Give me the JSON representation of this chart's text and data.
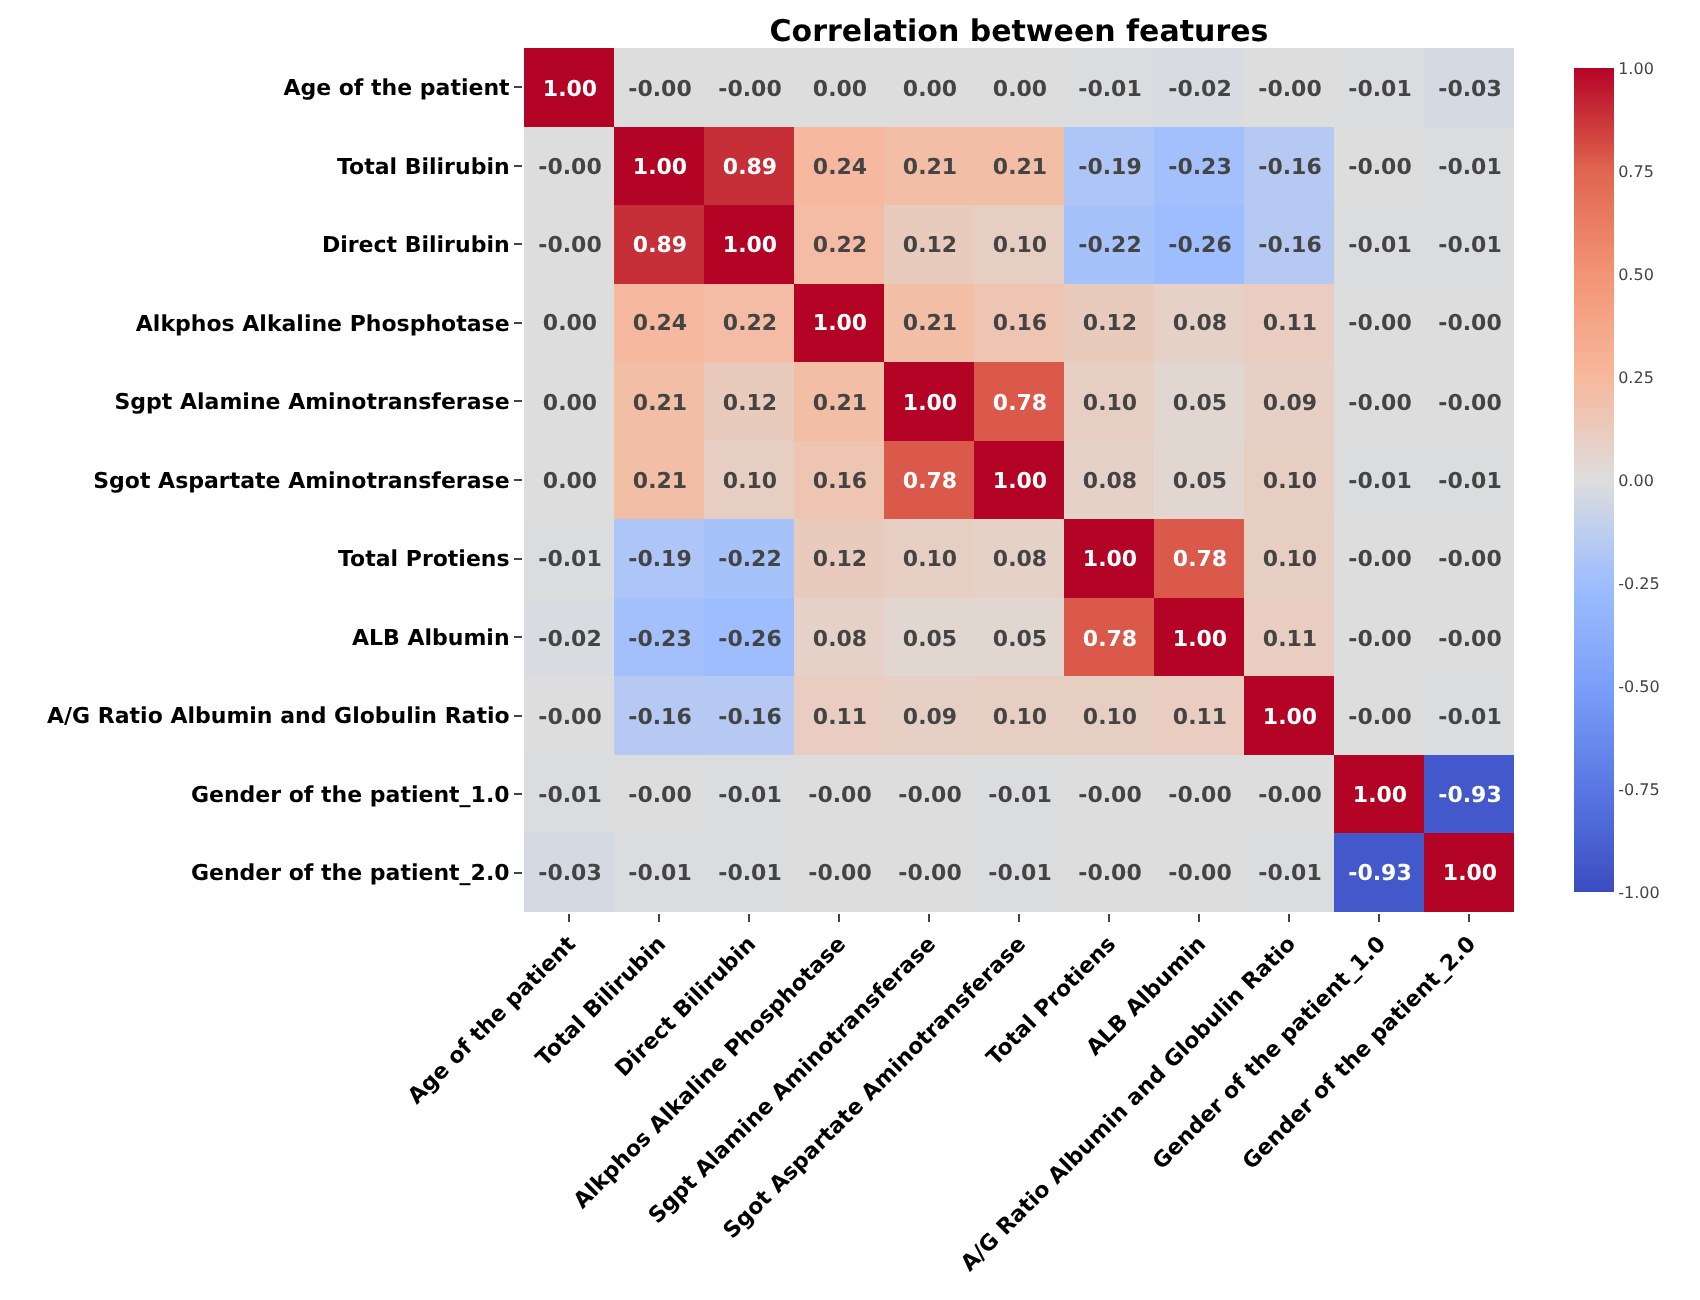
{
  "chart_data": {
    "type": "heatmap",
    "title": "Correlation between features",
    "categories": [
      "Age of the patient",
      "Total Bilirubin",
      "Direct Bilirubin",
      "Alkphos Alkaline Phosphotase",
      "Sgpt Alamine Aminotransferase",
      "Sgot Aspartate Aminotransferase",
      "Total Protiens",
      "ALB Albumin",
      "A/G Ratio Albumin and Globulin Ratio",
      "Gender of the patient_1.0",
      "Gender of the patient_2.0"
    ],
    "y_categories": [
      "Age of the patient",
      "Total Bilirubin",
      "Direct Bilirubin",
      "Alkphos Alkaline Phosphotase",
      "Sgpt Alamine Aminotransferase",
      "Sgot Aspartate Aminotransferase",
      "Total Protiens",
      "ALB Albumin",
      "A/G Ratio Albumin and Globulin Ratio",
      "Gender of the patient_1.0",
      "Gender of the patient_2.0"
    ],
    "cells": [
      [
        1.0,
        0,
        0,
        0,
        0,
        0,
        -0.01,
        -0.02,
        0,
        -0.01,
        -0.03
      ],
      [
        0,
        1.0,
        0.89,
        0.24,
        0.21,
        0.21,
        -0.19,
        -0.23,
        -0.16,
        0,
        -0.01
      ],
      [
        0,
        0.89,
        1.0,
        0.22,
        0.12,
        0.1,
        -0.22,
        -0.26,
        -0.16,
        -0.01,
        -0.01
      ],
      [
        0,
        0.24,
        0.22,
        1.0,
        0.21,
        0.16,
        0.12,
        0.08,
        0.11,
        0,
        0
      ],
      [
        0,
        0.21,
        0.12,
        0.21,
        1.0,
        0.78,
        0.1,
        0.05,
        0.09,
        0,
        0
      ],
      [
        0,
        0.21,
        0.1,
        0.16,
        0.78,
        1.0,
        0.08,
        0.05,
        0.1,
        -0.01,
        -0.01
      ],
      [
        -0.01,
        -0.19,
        -0.22,
        0.12,
        0.1,
        0.08,
        1.0,
        0.78,
        0.1,
        0,
        0
      ],
      [
        -0.02,
        -0.23,
        -0.26,
        0.08,
        0.05,
        0.05,
        0.78,
        1.0,
        0.11,
        0,
        0
      ],
      [
        0,
        -0.16,
        -0.16,
        0.11,
        0.09,
        0.1,
        0.1,
        0.11,
        1.0,
        0,
        -0.01
      ],
      [
        -0.01,
        0,
        -0.01,
        0,
        0,
        -0.01,
        0,
        0,
        0,
        1.0,
        -0.93
      ],
      [
        -0.03,
        -0.01,
        -0.01,
        0,
        0,
        -0.01,
        0,
        0,
        -0.01,
        -0.93,
        1.0
      ]
    ],
    "cell_labels": [
      [
        "1.00",
        "-0.00",
        "-0.00",
        "0.00",
        "0.00",
        "0.00",
        "-0.01",
        "-0.02",
        "-0.00",
        "-0.01",
        "-0.03"
      ],
      [
        "-0.00",
        "1.00",
        "0.89",
        "0.24",
        "0.21",
        "0.21",
        "-0.19",
        "-0.23",
        "-0.16",
        "-0.00",
        "-0.01"
      ],
      [
        "-0.00",
        "0.89",
        "1.00",
        "0.22",
        "0.12",
        "0.10",
        "-0.22",
        "-0.26",
        "-0.16",
        "-0.01",
        "-0.01"
      ],
      [
        "0.00",
        "0.24",
        "0.22",
        "1.00",
        "0.21",
        "0.16",
        "0.12",
        "0.08",
        "0.11",
        "-0.00",
        "-0.00"
      ],
      [
        "0.00",
        "0.21",
        "0.12",
        "0.21",
        "1.00",
        "0.78",
        "0.10",
        "0.05",
        "0.09",
        "-0.00",
        "-0.00"
      ],
      [
        "0.00",
        "0.21",
        "0.10",
        "0.16",
        "0.78",
        "1.00",
        "0.08",
        "0.05",
        "0.10",
        "-0.01",
        "-0.01"
      ],
      [
        "-0.01",
        "-0.19",
        "-0.22",
        "0.12",
        "0.10",
        "0.08",
        "1.00",
        "0.78",
        "0.10",
        "-0.00",
        "-0.00"
      ],
      [
        "-0.02",
        "-0.23",
        "-0.26",
        "0.08",
        "0.05",
        "0.05",
        "0.78",
        "1.00",
        "0.11",
        "-0.00",
        "-0.00"
      ],
      [
        "-0.00",
        "-0.16",
        "-0.16",
        "0.11",
        "0.09",
        "0.10",
        "0.10",
        "0.11",
        "1.00",
        "-0.00",
        "-0.01"
      ],
      [
        "-0.01",
        "-0.00",
        "-0.01",
        "-0.00",
        "-0.00",
        "-0.01",
        "-0.00",
        "-0.00",
        "-0.00",
        "1.00",
        "-0.93"
      ],
      [
        "-0.03",
        "-0.01",
        "-0.01",
        "-0.00",
        "-0.00",
        "-0.01",
        "-0.00",
        "-0.00",
        "-0.01",
        "-0.93",
        "1.00"
      ]
    ],
    "clim": [
      -1,
      1
    ],
    "cticks": [
      {
        "value": 1,
        "label": "1.00"
      },
      {
        "value": 0.75,
        "label": "0.75"
      },
      {
        "value": 0.5,
        "label": "0.50"
      },
      {
        "value": 0.25,
        "label": "0.25"
      },
      {
        "value": 0,
        "label": "0.00"
      },
      {
        "value": -0.25,
        "label": "-0.25"
      },
      {
        "value": -0.5,
        "label": "-0.50"
      },
      {
        "value": -0.75,
        "label": "-0.75"
      },
      {
        "value": -1,
        "label": "-1.00"
      }
    ]
  }
}
